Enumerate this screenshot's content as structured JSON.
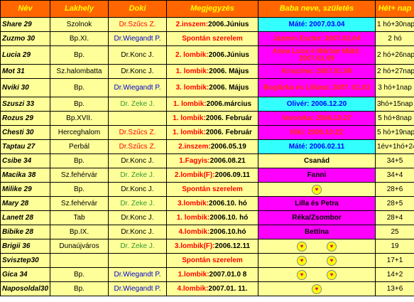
{
  "headers": [
    "Név",
    "Lakhely",
    "Doki",
    "Megjegyzés",
    "Baba neve, születés",
    "Hét+ nap"
  ],
  "colors": {
    "header_bg": "#ff6600",
    "header_fg": "#ffff00",
    "row_bg": "#ffff99",
    "cyan": "#33ffff",
    "magenta": "#ff00ff",
    "red": "#ff0000",
    "blue": "#0000cc",
    "green": "#339933"
  },
  "rows": [
    {
      "name": "Share 29",
      "city": "Szolnok",
      "doc": "Dr.Szűcs Z.",
      "doc_color": "#ff0000",
      "note_a": "2.inszem:",
      "note_b": "2006.Június",
      "note_plain": "",
      "baby": "Máté: 2007.03.04",
      "baby_bg": "#33ffff",
      "baby_fg": "#0000ff",
      "hearts": 0,
      "age": "1 hó+30nap",
      "tall": false
    },
    {
      "name": "Zuzmo 30",
      "city": "Bp.XI.",
      "doc": "Dr.Wiegandt P.",
      "doc_color": "#0000cc",
      "note_a": "",
      "note_b": "",
      "note_plain": "Spontán szerelem",
      "baby": "Jázmin Eszter: 2007.02.04",
      "baby_bg": "#ff00ff",
      "baby_fg": "#ff3300",
      "hearts": 0,
      "age": "2 hó",
      "tall": false
    },
    {
      "name": "Lucia 29",
      "city": "Bp.",
      "doc": "Dr.Konc J.",
      "doc_color": "#000000",
      "note_a": "2. lombik:",
      "note_b": "2006.Június",
      "note_plain": "",
      "baby": "Anna Luca é Márton Máté: 2007.01.09",
      "baby_bg": "#ff00ff",
      "baby_fg": "#ff3300",
      "hearts": 0,
      "age": "2 hó+26nap",
      "tall": true
    },
    {
      "name": "Mot 31",
      "city": "Sz.halombatta",
      "doc": "Dr.Konc J.",
      "doc_color": "#000000",
      "note_a": "1. lombik:",
      "note_b": "2006. Május",
      "note_plain": "",
      "baby": "Krisztina: 2007.01.08",
      "baby_bg": "#ff00ff",
      "baby_fg": "#ff3300",
      "hearts": 0,
      "age": "2 hó+27nap",
      "tall": false
    },
    {
      "name": "Nviki 30",
      "city": "Bp.",
      "doc": "Dr.Wiegandt P.",
      "doc_color": "#0000cc",
      "note_a": "3. lombik:",
      "note_b": "2006. Május",
      "note_plain": "",
      "baby": "Boglárka és Liliána: 2007. 01.03",
      "baby_bg": "#ff00ff",
      "baby_fg": "#ff3300",
      "hearts": 0,
      "age": "3 hó+1nap",
      "tall": true
    },
    {
      "name": "Szuszi 33",
      "city": "Bp.",
      "doc": "Dr. Zeke J.",
      "doc_color": "#339933",
      "note_a": "1. lombik:",
      "note_b": "2006.március",
      "note_plain": "",
      "baby": "Olivér: 2006.12.20",
      "baby_bg": "#33ffff",
      "baby_fg": "#0000ff",
      "hearts": 0,
      "age": "3hó+15nap",
      "tall": false
    },
    {
      "name": "Rozus 29",
      "city": "Bp.XVII.",
      "doc": "",
      "doc_color": "#000000",
      "note_a": "1. lombik:",
      "note_b": "2006. Február",
      "note_plain": "",
      "baby": "Veronika: 2006.10.27",
      "baby_bg": "#ff00ff",
      "baby_fg": "#ff3300",
      "hearts": 0,
      "age": "5 hó+8nap",
      "tall": false
    },
    {
      "name": "Chesti 30",
      "city": "Herceghalom",
      "doc": "Dr.Szűcs Z.",
      "doc_color": "#ff0000",
      "note_a": "1. lombik:",
      "note_b": "2006. Február",
      "note_plain": "",
      "baby": "Niki: 2006.10.22",
      "baby_bg": "#ff00ff",
      "baby_fg": "#ff3300",
      "hearts": 0,
      "age": "5 hó+19nap",
      "tall": false
    },
    {
      "name": "Taptau 27",
      "city": "Perbál",
      "doc": "Dr.Szűcs Z.",
      "doc_color": "#ff0000",
      "note_a": "2.inszem:",
      "note_b": "2006.05.19",
      "note_plain": "",
      "baby": "Máté: 2006.02.11",
      "baby_bg": "#33ffff",
      "baby_fg": "#0000ff",
      "hearts": 0,
      "age": "1év+1hó+24nap",
      "tall": false
    },
    {
      "name": "Csibe 34",
      "city": "Bp.",
      "doc": "Dr.Konc J.",
      "doc_color": "#000000",
      "note_a": "1.Fagyis:",
      "note_b": "2006.08.21",
      "note_plain": "",
      "baby": "Csanád",
      "baby_bg": "#ffff99",
      "baby_fg": "#000000",
      "hearts": 0,
      "age": "34+5",
      "tall": false
    },
    {
      "name": "Macika 38",
      "city": "Sz.fehérvár",
      "doc": "Dr. Zeke J.",
      "doc_color": "#339933",
      "note_a": "2.lombik(F):",
      "note_b": "2006.09.11",
      "note_plain": "",
      "baby": "Fanni",
      "baby_bg": "#ff00ff",
      "baby_fg": "#000000",
      "hearts": 0,
      "age": "34+4",
      "tall": false
    },
    {
      "name": "Milike 29",
      "city": "Bp.",
      "doc": "Dr.Konc J.",
      "doc_color": "#000000",
      "note_a": "",
      "note_b": "",
      "note_plain": "Spontán szerelem",
      "baby": "",
      "baby_bg": "#ffff99",
      "baby_fg": "#000000",
      "hearts": 1,
      "age": "28+6",
      "tall": false
    },
    {
      "name": "Mary 28",
      "city": "Sz.fehérvár",
      "doc": "Dr. Zeke J.",
      "doc_color": "#339933",
      "note_a": "3.lombik:",
      "note_b": "2006.10. hó",
      "note_plain": "",
      "baby": "Lilla és Petra",
      "baby_bg": "#ff00ff",
      "baby_fg": "#000000",
      "hearts": 0,
      "age": "28+5",
      "tall": false
    },
    {
      "name": "Lanett 28",
      "city": "Tab",
      "doc": "Dr.Konc J.",
      "doc_color": "#000000",
      "note_a": "1. lombik:",
      "note_b": "2006.10. hó",
      "note_plain": "",
      "baby": "Réka/Zsombor",
      "baby_bg": "#ff00ff",
      "baby_fg": "#000000",
      "hearts": 0,
      "age": "28+4",
      "tall": false
    },
    {
      "name": "Bibike 28",
      "city": "Bp.IX.",
      "doc": "Dr.Konc J.",
      "doc_color": "#000000",
      "note_a": "4.lombik:",
      "note_b": "2006.10.hó",
      "note_plain": "",
      "baby": "Bettina",
      "baby_bg": "#ff00ff",
      "baby_fg": "#000000",
      "hearts": 0,
      "age": "25",
      "tall": false
    },
    {
      "name": "Brigii 36",
      "city": "Dunaújváros",
      "doc": "Dr. Zeke J.",
      "doc_color": "#339933",
      "note_a": "3.lombik(F):",
      "note_b": "2006.12.11",
      "note_plain": "",
      "baby": "",
      "baby_bg": "#ffff99",
      "baby_fg": "#000000",
      "hearts": 2,
      "age": "19",
      "tall": false
    },
    {
      "name": "Svisztер30",
      "city": "",
      "doc": "",
      "doc_color": "#000000",
      "note_a": "",
      "note_b": "",
      "note_plain": "Spontán szerelem",
      "baby": "",
      "baby_bg": "#ffff99",
      "baby_fg": "#000000",
      "hearts": 2,
      "age": "17+1",
      "tall": false
    },
    {
      "name": "Gica  34",
      "city": "Bp.",
      "doc": "Dr.Wiegandt P.",
      "doc_color": "#0000cc",
      "note_a": "1.lombik:",
      "note_b": "2007.01.0 8",
      "note_plain": "",
      "baby": "",
      "baby_bg": "#ffff99",
      "baby_fg": "#000000",
      "hearts": 2,
      "age": "14+2",
      "tall": false
    },
    {
      "name": "Naposoldal30",
      "city": "Bp.",
      "doc": "Dr.Wiegandt P.",
      "doc_color": "#0000cc",
      "note_a": "4.lombik:",
      "note_b": "2007.01. 11.",
      "note_plain": "",
      "baby": "",
      "baby_bg": "#ffff99",
      "baby_fg": "#000000",
      "hearts": 1,
      "age": "13+6",
      "tall": false
    }
  ]
}
